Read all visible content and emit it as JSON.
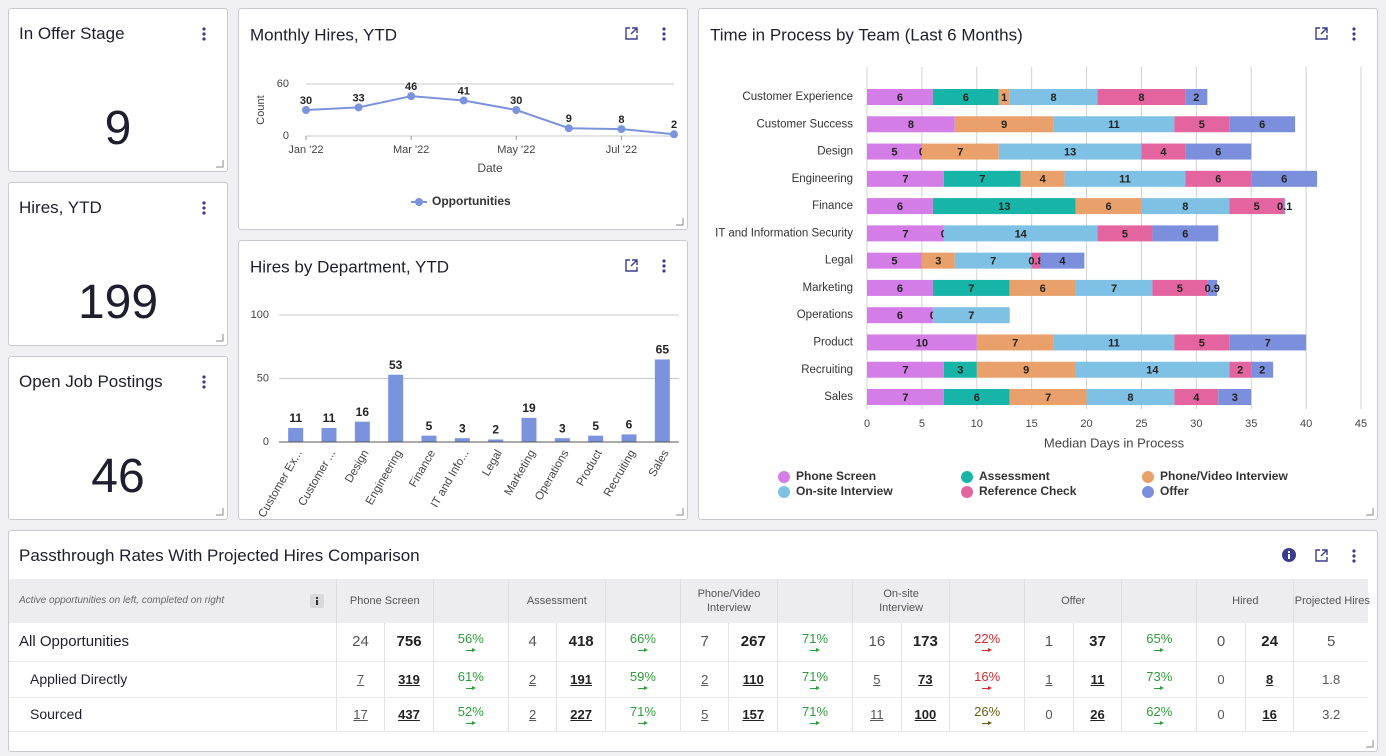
{
  "kpis": [
    {
      "title": "In Offer Stage",
      "value": 9
    },
    {
      "title": "Hires, YTD",
      "value": 199
    },
    {
      "title": "Open Job Postings",
      "value": 46
    }
  ],
  "chart_data": [
    {
      "type": "line",
      "title": "Monthly Hires, YTD",
      "xlabel": "Date",
      "ylabel": "Count",
      "categories": [
        "Jan '22",
        null,
        "Mar '22",
        null,
        "May '22",
        null,
        "Jul '22",
        null
      ],
      "series": [
        {
          "name": "Opportunities",
          "color": "#7b93dc",
          "values": [
            30,
            33,
            46,
            41,
            30,
            9,
            8,
            2
          ]
        }
      ],
      "ylim": [
        0,
        60
      ],
      "yticks": [
        0,
        60
      ],
      "grid": true,
      "legend": "bottom"
    },
    {
      "type": "bar",
      "title": "Hires by Department, YTD",
      "categories": [
        "Customer Ex...",
        "Customer ...",
        "Design",
        "Engineering",
        "Finance",
        "IT and Info...",
        "Legal",
        "Marketing",
        "Operations",
        "Product",
        "Recruiting",
        "Sales"
      ],
      "values": [
        11,
        11,
        16,
        53,
        5,
        3,
        2,
        19,
        3,
        5,
        6,
        65
      ],
      "color": "#7b93dc",
      "ylim": [
        0,
        100
      ],
      "yticks": [
        0,
        50,
        100
      ],
      "grid": true
    },
    {
      "type": "hbar",
      "stacked": true,
      "title": "Time in Process by Team (Last 6 Months)",
      "xlabel": "Median Days in Process",
      "categories": [
        "Customer Experience",
        "Customer Success",
        "Design",
        "Engineering",
        "Finance",
        "IT and Information Security",
        "Legal",
        "Marketing",
        "Operations",
        "Product",
        "Recruiting",
        "Sales"
      ],
      "series": [
        {
          "name": "Phone Screen",
          "color": "#d57de6",
          "values": [
            6,
            8,
            5,
            7,
            6,
            7,
            5,
            6,
            6,
            10,
            7,
            7
          ]
        },
        {
          "name": "Assessment",
          "color": "#17b5a8",
          "values": [
            6,
            null,
            0,
            7,
            13,
            0,
            null,
            7,
            0,
            null,
            3,
            6
          ]
        },
        {
          "name": "Phone/Video Interview",
          "color": "#e9a06a",
          "values": [
            1,
            9,
            7,
            4,
            6,
            null,
            3,
            6,
            null,
            7,
            9,
            7
          ]
        },
        {
          "name": "On-site Interview",
          "color": "#7ec1e4",
          "values": [
            8,
            11,
            13,
            11,
            8,
            14,
            7,
            7,
            7,
            11,
            14,
            8
          ]
        },
        {
          "name": "Reference Check",
          "color": "#e3649f",
          "values": [
            8,
            5,
            4,
            6,
            5,
            5,
            0.8,
            5,
            null,
            5,
            2,
            4
          ]
        },
        {
          "name": "Offer",
          "color": "#7b8fdc",
          "values": [
            2,
            6,
            6,
            6,
            0.1,
            6,
            4,
            0.9,
            null,
            7,
            2,
            3
          ]
        }
      ],
      "xlim": [
        0,
        45
      ],
      "xticks": [
        0,
        5,
        10,
        15,
        20,
        25,
        30,
        35,
        40,
        45
      ],
      "grid": true,
      "legend": "bottom"
    }
  ],
  "table": {
    "title": "Passthrough Rates With Projected Hires Comparison",
    "note": "Active opportunities on left, completed on right",
    "stages": [
      "Phone Screen",
      "Assessment",
      "Phone/Video Interview",
      "On-site Interview",
      "Offer",
      "Hired",
      "Projected Hires"
    ],
    "rows": [
      {
        "label": "All Opportunities",
        "cells": [
          24,
          756,
          "56%",
          4,
          418,
          "66%",
          7,
          267,
          "71%",
          16,
          173,
          "22%",
          1,
          37,
          "65%",
          0,
          24,
          5
        ],
        "rate_colors": [
          "#2e9c3a",
          "#2e9c3a",
          "#2e9c3a",
          "#d62a2a",
          "#2e9c3a"
        ]
      },
      {
        "label": "Applied Directly",
        "cells": [
          7,
          319,
          "61%",
          2,
          191,
          "59%",
          2,
          110,
          "71%",
          5,
          73,
          "16%",
          1,
          11,
          "73%",
          0,
          8,
          1.8
        ],
        "rate_colors": [
          "#2e9c3a",
          "#2e9c3a",
          "#2e9c3a",
          "#d62a2a",
          "#2e9c3a"
        ]
      },
      {
        "label": "Sourced",
        "cells": [
          17,
          437,
          "52%",
          2,
          227,
          "71%",
          5,
          157,
          "71%",
          11,
          100,
          "26%",
          0,
          26,
          "62%",
          0,
          16,
          3.2
        ],
        "rate_colors": [
          "#2e9c3a",
          "#2e9c3a",
          "#2e9c3a",
          "#6b5a10",
          "#2e9c3a"
        ]
      }
    ]
  }
}
